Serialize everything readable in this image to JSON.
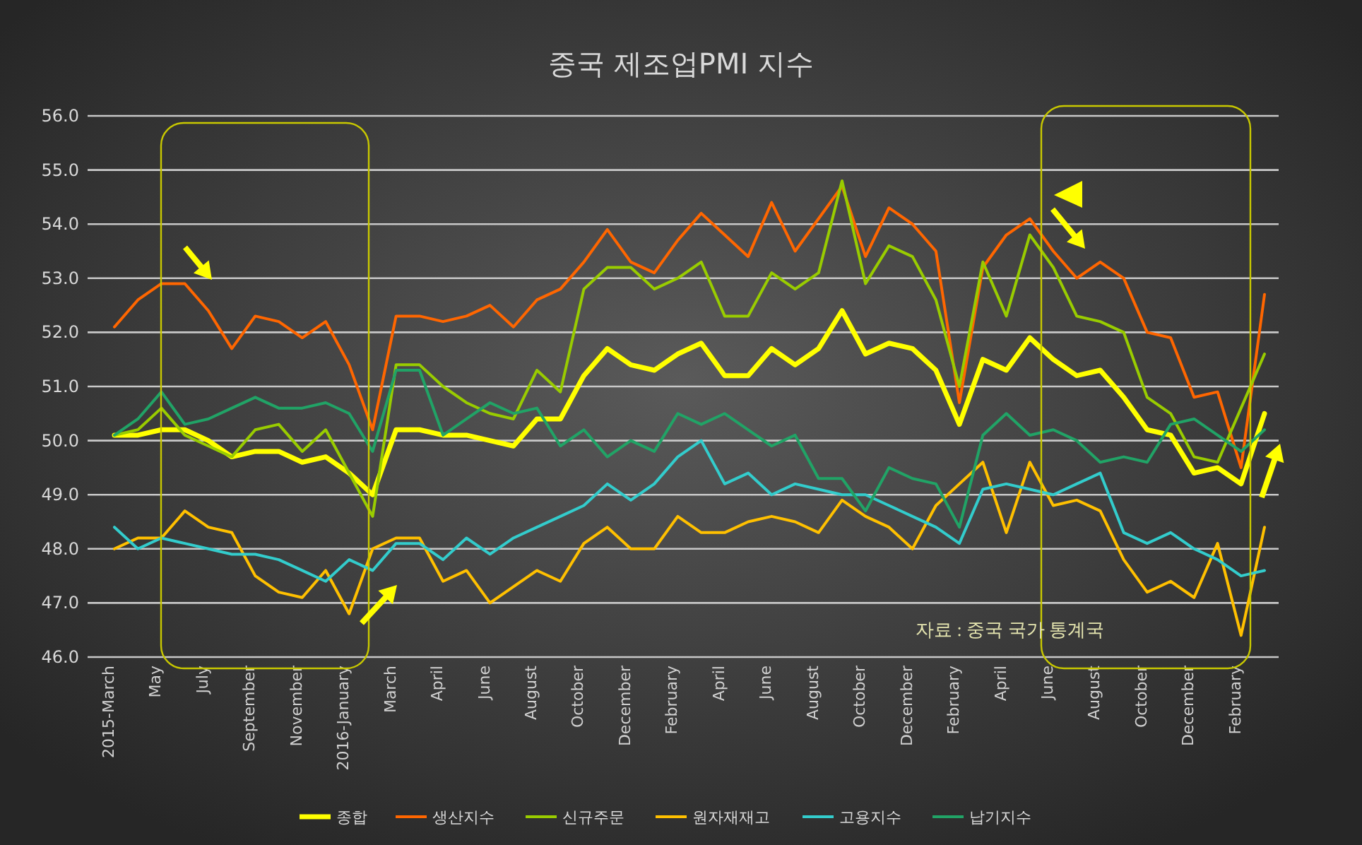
{
  "chart_data": {
    "type": "line",
    "title": "중국 제조업PMI 지수",
    "categories": [
      "2015-March",
      null,
      "May",
      null,
      "July",
      null,
      "September",
      null,
      "November",
      null,
      "2016-January",
      null,
      "March",
      null,
      "April",
      null,
      "June",
      null,
      "August",
      null,
      "October",
      null,
      "December",
      null,
      "February",
      null,
      "April",
      null,
      "June",
      null,
      "August",
      null,
      "October",
      null,
      "December",
      null,
      "February",
      null,
      "April",
      null,
      "June",
      null,
      "August",
      null,
      "October",
      null,
      "December",
      null,
      "February",
      null
    ],
    "series": [
      {
        "name": "종합",
        "color": "#ffff00",
        "values": [
          50.1,
          50.1,
          50.2,
          50.2,
          50.0,
          49.7,
          49.8,
          49.8,
          49.6,
          49.7,
          49.4,
          49.0,
          50.2,
          50.2,
          50.1,
          50.1,
          50.0,
          49.9,
          50.4,
          50.4,
          51.2,
          51.7,
          51.4,
          51.3,
          51.6,
          51.8,
          51.2,
          51.2,
          51.7,
          51.4,
          51.7,
          52.4,
          51.6,
          51.8,
          51.7,
          51.3,
          50.3,
          51.5,
          51.3,
          51.9,
          51.5,
          51.2,
          51.3,
          50.8,
          50.2,
          50.1,
          49.4,
          49.5,
          49.2,
          50.5
        ]
      },
      {
        "name": "생산지수",
        "color": "#ff6600",
        "values": [
          52.1,
          52.6,
          52.9,
          52.9,
          52.4,
          51.7,
          52.3,
          52.2,
          51.9,
          52.2,
          51.4,
          50.2,
          52.3,
          52.3,
          52.2,
          52.3,
          52.5,
          52.1,
          52.6,
          52.8,
          53.3,
          53.9,
          53.3,
          53.1,
          53.7,
          54.2,
          53.8,
          53.4,
          54.4,
          53.5,
          54.1,
          54.7,
          53.4,
          54.3,
          54.0,
          53.5,
          50.7,
          53.2,
          53.8,
          54.1,
          53.5,
          53.0,
          53.3,
          53.0,
          52.0,
          51.9,
          50.8,
          50.9,
          49.5,
          52.7
        ]
      },
      {
        "name": "신규주문",
        "color": "#99cc00",
        "values": [
          50.1,
          50.2,
          50.6,
          50.1,
          49.9,
          49.7,
          50.2,
          50.3,
          49.8,
          50.2,
          49.4,
          48.6,
          51.4,
          51.4,
          51.0,
          50.7,
          50.5,
          50.4,
          51.3,
          50.9,
          52.8,
          53.2,
          53.2,
          52.8,
          53.0,
          53.3,
          52.3,
          52.3,
          53.1,
          52.8,
          53.1,
          54.8,
          52.9,
          53.6,
          53.4,
          52.6,
          51.0,
          53.3,
          52.3,
          53.8,
          53.2,
          52.3,
          52.2,
          52.0,
          50.8,
          50.5,
          49.7,
          49.6,
          50.6,
          51.6
        ]
      },
      {
        "name": "원자재재고",
        "color": "#ffc000",
        "values": [
          48.0,
          48.2,
          48.2,
          48.7,
          48.4,
          48.3,
          47.5,
          47.2,
          47.1,
          47.6,
          46.8,
          48.0,
          48.2,
          48.2,
          47.4,
          47.6,
          47.0,
          47.3,
          47.6,
          47.4,
          48.1,
          48.4,
          48.0,
          48.0,
          48.6,
          48.3,
          48.3,
          48.5,
          48.6,
          48.5,
          48.3,
          48.9,
          48.6,
          48.4,
          48.0,
          48.8,
          49.2,
          49.6,
          48.3,
          49.6,
          48.8,
          48.9,
          48.7,
          47.8,
          47.2,
          47.4,
          47.1,
          48.1,
          46.4,
          48.4
        ]
      },
      {
        "name": "고용지수",
        "color": "#33cccc",
        "values": [
          48.4,
          48.0,
          48.2,
          48.1,
          48.0,
          47.9,
          47.9,
          47.8,
          47.6,
          47.4,
          47.8,
          47.6,
          48.1,
          48.1,
          47.8,
          48.2,
          47.9,
          48.2,
          48.4,
          48.6,
          48.8,
          49.2,
          48.9,
          49.2,
          49.7,
          50.0,
          49.2,
          49.4,
          49.0,
          49.2,
          49.1,
          49.0,
          49.0,
          48.8,
          48.6,
          48.4,
          48.1,
          49.1,
          49.2,
          49.1,
          49.0,
          49.2,
          49.4,
          48.3,
          48.1,
          48.3,
          48.0,
          47.8,
          47.5,
          47.6
        ]
      },
      {
        "name": "납기지수",
        "color": "#21a366",
        "values": [
          50.1,
          50.4,
          50.9,
          50.3,
          50.4,
          50.6,
          50.8,
          50.6,
          50.6,
          50.7,
          50.5,
          49.8,
          51.3,
          51.3,
          50.1,
          50.4,
          50.7,
          50.5,
          50.6,
          49.9,
          50.2,
          49.7,
          50.0,
          49.8,
          50.5,
          50.3,
          50.5,
          50.2,
          49.9,
          50.1,
          49.3,
          49.3,
          48.7,
          49.5,
          49.3,
          49.2,
          48.4,
          50.1,
          50.5,
          50.1,
          50.2,
          50.0,
          49.6,
          49.7,
          49.6,
          50.3,
          50.4,
          50.1,
          49.8,
          50.2
        ]
      }
    ],
    "ylim": [
      46,
      56
    ],
    "yticks": [
      {
        "value": 46,
        "label": "46.0"
      },
      {
        "value": 47,
        "label": "47.0"
      },
      {
        "value": 48,
        "label": "48.0"
      },
      {
        "value": 49,
        "label": "49.0"
      },
      {
        "value": 50,
        "label": "50.0"
      },
      {
        "value": 51,
        "label": "51.0"
      },
      {
        "value": 52,
        "label": "52.0"
      },
      {
        "value": 53,
        "label": "53.0"
      },
      {
        "value": 54,
        "label": "54.0"
      },
      {
        "value": 55,
        "label": "55.0"
      },
      {
        "value": 56,
        "label": "56.0"
      }
    ],
    "grid": "y",
    "legend": "bottom",
    "annotations": [
      "자료 : 중국 국가 통계국"
    ]
  }
}
